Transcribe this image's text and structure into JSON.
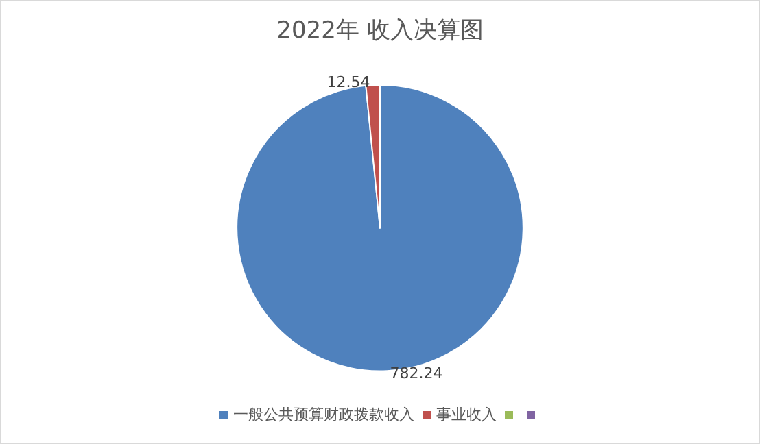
{
  "chart_data": {
    "type": "pie",
    "title": "2022年 收入决算图",
    "categories": [
      "一般公共预算财政拨款收入",
      "事业收入",
      null,
      null
    ],
    "values": [
      782.24,
      12.54,
      0,
      0
    ],
    "colors": [
      "#4f81bd",
      "#c0504d",
      "#9bbb59",
      "#8064a2"
    ],
    "value_labels": [
      "782.24",
      "12.54",
      null,
      null
    ],
    "legend": "bottom"
  }
}
